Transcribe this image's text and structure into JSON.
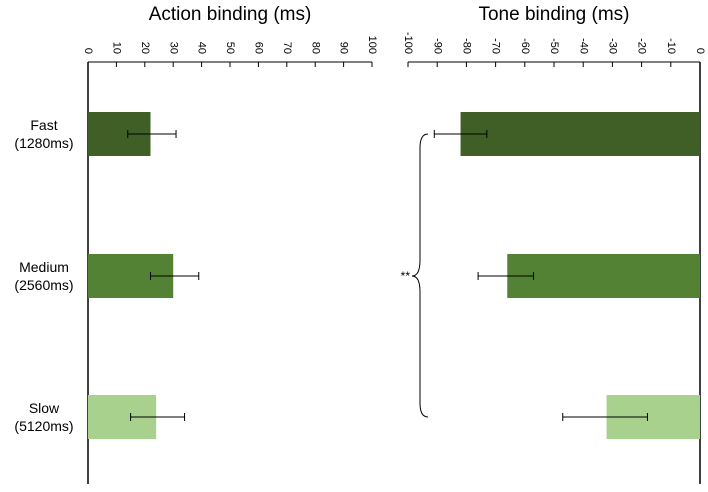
{
  "categories": [
    {
      "name": "Fast",
      "interval": "(1280ms)"
    },
    {
      "name": "Medium",
      "interval": "(2560ms)"
    },
    {
      "name": "Slow",
      "interval": "(5120ms)"
    }
  ],
  "significance_label": "**",
  "chart_data": [
    {
      "type": "bar",
      "orientation": "horizontal",
      "title": "Action binding (ms)",
      "categories": [
        "Fast (1280ms)",
        "Medium (2560ms)",
        "Slow (5120ms)"
      ],
      "values": [
        22,
        30,
        24
      ],
      "error_low": [
        14,
        22,
        15
      ],
      "error_high": [
        31,
        39,
        34
      ],
      "xlim": [
        0,
        100
      ],
      "ticks": [
        0,
        10,
        20,
        30,
        40,
        50,
        60,
        70,
        80,
        90,
        100
      ],
      "tick_labels": [
        "0",
        "10",
        "20",
        "30",
        "40",
        "50",
        "60",
        "70",
        "80",
        "90",
        "100"
      ],
      "colors": [
        "#3f5f26",
        "#548235",
        "#a9d18e"
      ],
      "grid": false
    },
    {
      "type": "bar",
      "orientation": "horizontal",
      "title": "Tone binding (ms)",
      "categories": [
        "Fast (1280ms)",
        "Medium (2560ms)",
        "Slow (5120ms)"
      ],
      "values": [
        -82,
        -66,
        -32
      ],
      "error_low": [
        -91,
        -76,
        -47
      ],
      "error_high": [
        -73,
        -57,
        -18
      ],
      "xlim": [
        -100,
        0
      ],
      "ticks": [
        -100,
        -90,
        -80,
        -70,
        -60,
        -50,
        -40,
        -30,
        -20,
        -10,
        0
      ],
      "tick_labels": [
        "-100",
        "-90",
        "-80",
        "-70",
        "-60",
        "-50",
        "-40",
        "-30",
        "-20",
        "-10",
        "0"
      ],
      "colors": [
        "#3f5f26",
        "#548235",
        "#a9d18e"
      ],
      "grid": false
    }
  ]
}
